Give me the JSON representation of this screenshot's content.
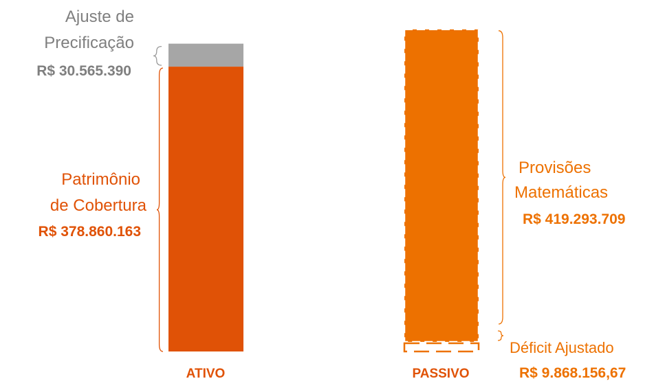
{
  "chart_data": {
    "type": "bar",
    "stacked": true,
    "categories": [
      "ATIVO",
      "PASSIVO"
    ],
    "series": [
      {
        "stack": "ATIVO",
        "name": "Patrimônio de Cobertura",
        "value": 378860163,
        "color": "#e05206",
        "style": "solid",
        "label_lines": [
          "Patrimônio",
          "de Cobertura"
        ],
        "value_label": "R$ 378.860.163"
      },
      {
        "stack": "ATIVO",
        "name": "Ajuste de Precificação",
        "value": 30565390,
        "color": "#a6a6a6",
        "style": "solid",
        "label_lines": [
          "Ajuste de",
          "Precificação"
        ],
        "value_label": "R$ 30.565.390"
      },
      {
        "stack": "PASSIVO",
        "name": "Déficit Ajustado",
        "value": 9868156.67,
        "color": "#ed7100",
        "style": "dashed",
        "label_lines": [
          "Déficit Ajustado"
        ],
        "value_label": "R$ 9.868.156,67"
      },
      {
        "stack": "PASSIVO",
        "name": "Provisões Matemáticas",
        "value": 419293709,
        "color": "#ed7100",
        "style": "solid-dashed-outline",
        "label_lines": [
          "Provisões",
          "Matemáticas"
        ],
        "value_label": "R$ 419.293.709"
      }
    ],
    "category_label_color": "#e05206",
    "title": "",
    "xlabel": "",
    "ylabel": "",
    "grid": false,
    "legend": "none"
  }
}
